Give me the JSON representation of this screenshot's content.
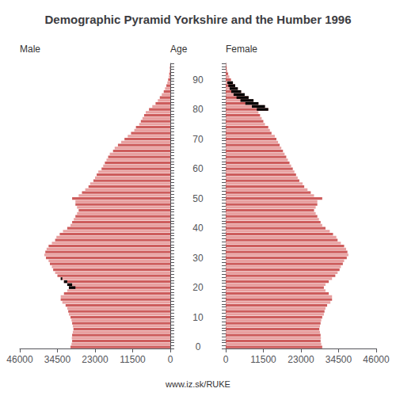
{
  "chart_data": {
    "type": "bar",
    "orientation": "horizontal",
    "title": "Demographic Pyramid Yorkshire and the Humber 1996",
    "ylabel": "Age",
    "annotations": [
      "www.iz.sk/RUKE"
    ],
    "grid": false,
    "categories": [
      "0",
      null,
      null,
      null,
      null,
      null,
      null,
      null,
      null,
      null,
      "10",
      null,
      null,
      null,
      null,
      null,
      null,
      null,
      null,
      null,
      "20",
      null,
      null,
      null,
      null,
      null,
      null,
      null,
      null,
      null,
      "30",
      null,
      null,
      null,
      null,
      null,
      null,
      null,
      null,
      null,
      "40",
      null,
      null,
      null,
      null,
      null,
      null,
      null,
      null,
      null,
      "50",
      null,
      null,
      null,
      null,
      null,
      null,
      null,
      null,
      null,
      "60",
      null,
      null,
      null,
      null,
      null,
      null,
      null,
      null,
      null,
      "70",
      null,
      null,
      null,
      null,
      null,
      null,
      null,
      null,
      null,
      "80",
      null,
      null,
      null,
      null,
      null,
      null,
      null,
      null,
      null,
      "90",
      null,
      null,
      null,
      null,
      null
    ],
    "xlim": [
      0,
      46000
    ],
    "xticks": [
      0,
      11500,
      23000,
      34500,
      46000
    ],
    "series": [
      {
        "name": "Male",
        "values": [
          30500,
          30200,
          30000,
          30100,
          30000,
          29800,
          29600,
          29800,
          30000,
          30200,
          30500,
          31000,
          31200,
          31500,
          32000,
          33000,
          33500,
          33500,
          32500,
          31500,
          31000,
          31500,
          32500,
          33500,
          34500,
          35200,
          35800,
          36200,
          36800,
          37200,
          38000,
          38500,
          38200,
          37800,
          37200,
          36200,
          35200,
          34800,
          33800,
          32800,
          31500,
          30500,
          30000,
          29500,
          29000,
          28500,
          28000,
          28500,
          29000,
          29000,
          30000,
          28000,
          27000,
          26000,
          25000,
          24500,
          23500,
          23000,
          22500,
          22000,
          21000,
          20500,
          20000,
          19500,
          19000,
          18500,
          17500,
          17000,
          16000,
          15000,
          14000,
          13000,
          12000,
          11000,
          10500,
          9500,
          9000,
          8500,
          8000,
          7500,
          6500,
          5500,
          4500,
          3800,
          3200,
          2600,
          2000,
          1600,
          1200,
          900,
          650,
          450,
          320,
          200,
          130,
          80
        ],
        "colors": [
          "#cd5c5c",
          "#e8a0a0",
          "#cd5c5c",
          "#e8a0a0",
          "#cd5c5c",
          "#e8a0a0",
          "#cd5c5c",
          "#e8a0a0",
          "#cd5c5c",
          "#e8a0a0",
          "#cd5c5c",
          "#e8a0a0",
          "#cd5c5c",
          "#e8a0a0",
          "#cd5c5c",
          "#e8a0a0",
          "#cd5c5c",
          "#e8a0a0",
          "#cd5c5c",
          "#e8a0a0",
          "#cd5c5c",
          "#e8a0a0",
          "#cd5c5c",
          "#e8a0a0",
          "#cd5c5c",
          "#e8a0a0",
          "#cd5c5c",
          "#e8a0a0",
          "#cd5c5c",
          "#e8a0a0",
          "#cd5c5c",
          "#e8a0a0",
          "#cd5c5c",
          "#e8a0a0",
          "#cd5c5c",
          "#e8a0a0",
          "#cd5c5c",
          "#e8a0a0",
          "#cd5c5c",
          "#e8a0a0",
          "#cd5c5c",
          "#e8a0a0",
          "#cd5c5c",
          "#e8a0a0",
          "#cd5c5c",
          "#e8a0a0",
          "#cd5c5c",
          "#e8a0a0",
          "#cd5c5c",
          "#e8a0a0",
          "#cd5c5c",
          "#e8a0a0",
          "#cd5c5c",
          "#e8a0a0",
          "#cd5c5c",
          "#e8a0a0",
          "#cd5c5c",
          "#e8a0a0",
          "#cd5c5c",
          "#e8a0a0",
          "#cd5c5c",
          "#e8a0a0",
          "#cd5c5c",
          "#e8a0a0",
          "#cd5c5c",
          "#e8a0a0",
          "#cd5c5c",
          "#e8a0a0",
          "#cd5c5c",
          "#e8a0a0",
          "#cd5c5c",
          "#e8a0a0",
          "#cd5c5c",
          "#e8a0a0",
          "#cd5c5c",
          "#e8a0a0",
          "#cd5c5c",
          "#e8a0a0",
          "#cd5c5c",
          "#e8a0a0",
          "#cd5c5c",
          "#e8a0a0",
          "#cd5c5c",
          "#e8a0a0",
          "#cd5c5c",
          "#e8a0a0",
          "#cd5c5c",
          "#e8a0a0",
          "#cd5c5c",
          "#e8a0a0",
          "#cd5c5c",
          "#e8a0a0",
          "#cd5c5c",
          "#e8a0a0",
          "#cd5c5c",
          "#e8a0a0"
        ],
        "overlay": {
          "color": "#000000",
          "values": [
            0,
            0,
            0,
            0,
            0,
            0,
            0,
            0,
            0,
            0,
            0,
            0,
            0,
            0,
            0,
            0,
            0,
            0,
            0,
            0,
            2000,
            1500,
            1000,
            500,
            0,
            0,
            0,
            0,
            0,
            0,
            0,
            0,
            0,
            0,
            0,
            0,
            0,
            0,
            0,
            0,
            0,
            0,
            0,
            0,
            0,
            0,
            0,
            0,
            0,
            0,
            0,
            0,
            0,
            0,
            0,
            0,
            0,
            0,
            0,
            0,
            0,
            0,
            0,
            0,
            0,
            0,
            0,
            0,
            0,
            0,
            0,
            0,
            0,
            0,
            0,
            0,
            0,
            0,
            0,
            0,
            0,
            0,
            0,
            0,
            0,
            0,
            0,
            0,
            0,
            0,
            0,
            0,
            0,
            0,
            0,
            0
          ]
        }
      },
      {
        "name": "Female",
        "values": [
          29500,
          29200,
          29000,
          29100,
          29000,
          28800,
          28600,
          28800,
          29000,
          29200,
          29500,
          30000,
          30200,
          30500,
          31000,
          32000,
          32500,
          32500,
          31500,
          30500,
          30000,
          30500,
          31500,
          32500,
          33500,
          34200,
          34800,
          35200,
          35800,
          36200,
          37000,
          37500,
          37200,
          36800,
          36200,
          35200,
          34200,
          33800,
          32800,
          31800,
          30500,
          29500,
          29000,
          28500,
          28000,
          27500,
          27000,
          27500,
          28000,
          28000,
          29500,
          27000,
          26000,
          25000,
          24000,
          23500,
          22500,
          22000,
          21500,
          21000,
          20500,
          20000,
          19500,
          19000,
          18500,
          18000,
          17500,
          17000,
          16500,
          16000,
          15500,
          15000,
          14000,
          13500,
          13000,
          12000,
          11500,
          11000,
          10500,
          10000,
          13000,
          12000,
          10000,
          8500,
          7000,
          5800,
          4700,
          3700,
          2900,
          2200,
          1600,
          1100,
          750,
          480,
          300,
          180
        ],
        "colors": [
          "#cd5c5c",
          "#e8a0a0",
          "#cd5c5c",
          "#e8a0a0",
          "#cd5c5c",
          "#e8a0a0",
          "#cd5c5c",
          "#e8a0a0",
          "#cd5c5c",
          "#e8a0a0",
          "#cd5c5c",
          "#e8a0a0",
          "#cd5c5c",
          "#e8a0a0",
          "#cd5c5c",
          "#e8a0a0",
          "#cd5c5c",
          "#e8a0a0",
          "#cd5c5c",
          "#e8a0a0",
          "#cd5c5c",
          "#e8a0a0",
          "#cd5c5c",
          "#e8a0a0",
          "#cd5c5c",
          "#e8a0a0",
          "#cd5c5c",
          "#e8a0a0",
          "#cd5c5c",
          "#e8a0a0",
          "#cd5c5c",
          "#e8a0a0",
          "#cd5c5c",
          "#e8a0a0",
          "#cd5c5c",
          "#e8a0a0",
          "#cd5c5c",
          "#e8a0a0",
          "#cd5c5c",
          "#e8a0a0",
          "#cd5c5c",
          "#e8a0a0",
          "#cd5c5c",
          "#e8a0a0",
          "#cd5c5c",
          "#e8a0a0",
          "#cd5c5c",
          "#e8a0a0",
          "#cd5c5c",
          "#e8a0a0",
          "#cd5c5c",
          "#e8a0a0",
          "#cd5c5c",
          "#e8a0a0",
          "#cd5c5c",
          "#e8a0a0",
          "#cd5c5c",
          "#e8a0a0",
          "#cd5c5c",
          "#e8a0a0",
          "#cd5c5c",
          "#e8a0a0",
          "#cd5c5c",
          "#e8a0a0",
          "#cd5c5c",
          "#e8a0a0",
          "#cd5c5c",
          "#e8a0a0",
          "#cd5c5c",
          "#e8a0a0",
          "#cd5c5c",
          "#e8a0a0",
          "#cd5c5c",
          "#e8a0a0",
          "#cd5c5c",
          "#e8a0a0",
          "#cd5c5c",
          "#e8a0a0",
          "#cd5c5c",
          "#e8a0a0",
          "#cd5c5c",
          "#e8a0a0",
          "#cd5c5c",
          "#e8a0a0",
          "#cd5c5c",
          "#e8a0a0",
          "#cd5c5c",
          "#e8a0a0",
          "#cd5c5c",
          "#e8a0a0",
          "#cd5c5c",
          "#e8a0a0",
          "#cd5c5c",
          "#e8a0a0",
          "#cd5c5c",
          "#e8a0a0"
        ],
        "overlay": {
          "color": "#000000",
          "values": [
            0,
            0,
            0,
            0,
            0,
            0,
            0,
            0,
            0,
            0,
            0,
            0,
            0,
            0,
            0,
            0,
            0,
            0,
            0,
            0,
            0,
            0,
            0,
            0,
            0,
            0,
            0,
            0,
            0,
            0,
            0,
            0,
            0,
            0,
            0,
            0,
            0,
            0,
            0,
            0,
            0,
            0,
            0,
            0,
            0,
            0,
            0,
            0,
            0,
            0,
            0,
            0,
            0,
            0,
            0,
            0,
            0,
            0,
            0,
            0,
            0,
            0,
            0,
            0,
            0,
            0,
            0,
            0,
            0,
            0,
            0,
            0,
            0,
            0,
            0,
            0,
            0,
            0,
            0,
            0,
            3500,
            4000,
            4000,
            4000,
            3700,
            3400,
            3000,
            2500,
            2100,
            1700,
            0,
            0,
            0,
            0,
            0,
            0
          ]
        }
      }
    ]
  }
}
